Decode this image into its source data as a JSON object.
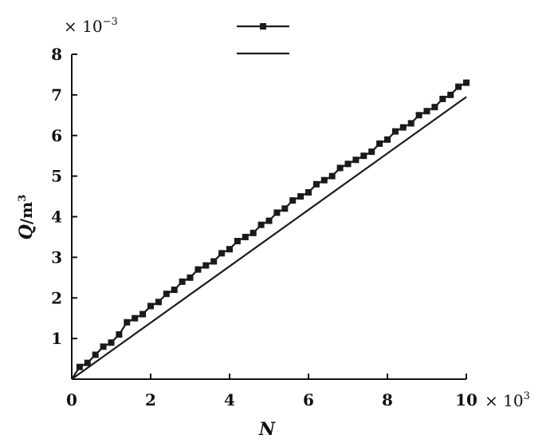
{
  "chart_data": {
    "type": "line",
    "title": "",
    "xlabel": "N",
    "ylabel_symbol": "Q",
    "ylabel_unit": "/m",
    "ylabel_unit_exp": "3",
    "x_multiplier": "× 10",
    "x_multiplier_exp": "3",
    "y_multiplier": "× 10",
    "y_multiplier_exp": "−3",
    "xlim": [
      0,
      10
    ],
    "ylim": [
      0,
      8
    ],
    "xticks": [
      0,
      2,
      4,
      6,
      8,
      10
    ],
    "yticks": [
      1,
      2,
      3,
      4,
      5,
      6,
      7,
      8
    ],
    "grid": false,
    "legend_placement": "top-center",
    "series": [
      {
        "marker": "square",
        "color": "#1a1a1a",
        "x": [
          0,
          0.2,
          0.4,
          0.6,
          0.8,
          1.0,
          1.2,
          1.4,
          1.6,
          1.8,
          2.0,
          2.2,
          2.4,
          2.6,
          2.8,
          3.0,
          3.2,
          3.4,
          3.6,
          3.8,
          4.0,
          4.2,
          4.4,
          4.6,
          4.8,
          5.0,
          5.2,
          5.4,
          5.6,
          5.8,
          6.0,
          6.2,
          6.4,
          6.6,
          6.8,
          7.0,
          7.2,
          7.4,
          7.6,
          7.8,
          8.0,
          8.2,
          8.4,
          8.6,
          8.8,
          9.0,
          9.2,
          9.4,
          9.6,
          9.8,
          10.0
        ],
        "y": [
          0,
          0.3,
          0.4,
          0.6,
          0.8,
          0.9,
          1.1,
          1.4,
          1.5,
          1.6,
          1.8,
          1.9,
          2.1,
          2.2,
          2.4,
          2.5,
          2.7,
          2.8,
          2.9,
          3.1,
          3.2,
          3.4,
          3.5,
          3.6,
          3.8,
          3.9,
          4.1,
          4.2,
          4.4,
          4.5,
          4.6,
          4.8,
          4.9,
          5.0,
          5.2,
          5.3,
          5.4,
          5.5,
          5.6,
          5.8,
          5.9,
          6.1,
          6.2,
          6.3,
          6.5,
          6.6,
          6.7,
          6.9,
          7.0,
          7.2,
          7.3
        ]
      },
      {
        "marker": "none",
        "color": "#1a1a1a",
        "x": [
          0,
          10
        ],
        "y": [
          0,
          6.95
        ]
      }
    ]
  }
}
